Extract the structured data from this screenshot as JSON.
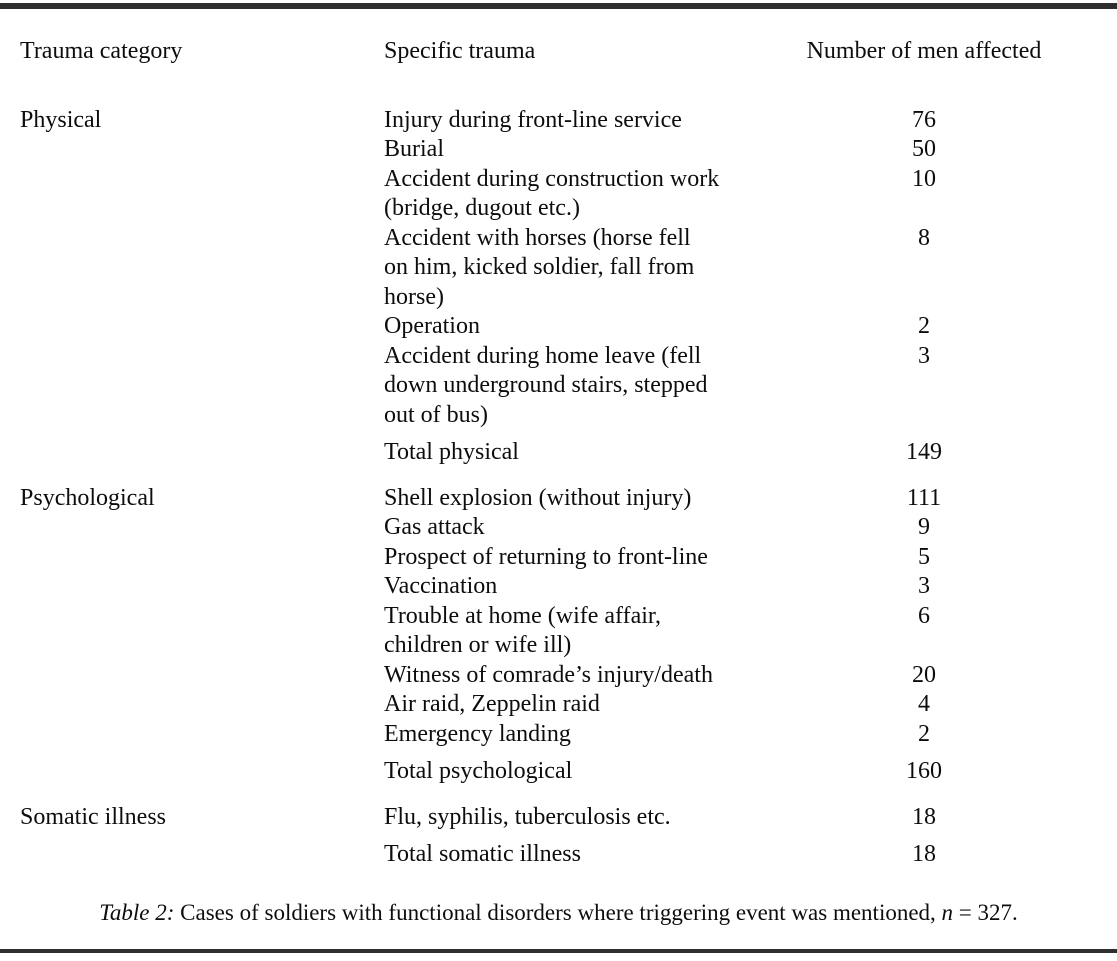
{
  "table": {
    "columns": {
      "category": "Trauma category",
      "trauma": "Specific trauma",
      "number": "Number of men affected"
    },
    "sections": [
      {
        "category": "Physical",
        "rows": [
          {
            "trauma": "Injury during front-line service",
            "number": "76"
          },
          {
            "trauma": "Burial",
            "number": "50"
          },
          {
            "trauma": "Accident during construction work\n(bridge, dugout etc.)",
            "number": "10"
          },
          {
            "trauma": "Accident with horses (horse fell\non him, kicked soldier, fall from\nhorse)",
            "number": "8"
          },
          {
            "trauma": "Operation",
            "number": "2"
          },
          {
            "trauma": "Accident during home leave (fell\ndown underground stairs, stepped\nout of bus)",
            "number": "3"
          }
        ],
        "total": {
          "label": "Total physical",
          "number": "149"
        }
      },
      {
        "category": "Psychological",
        "rows": [
          {
            "trauma": "Shell explosion (without injury)",
            "number": "111"
          },
          {
            "trauma": "Gas attack",
            "number": "9"
          },
          {
            "trauma": "Prospect of returning to front-line",
            "number": "5"
          },
          {
            "trauma": "Vaccination",
            "number": "3"
          },
          {
            "trauma": "Trouble at home (wife affair,\nchildren or wife ill)",
            "number": "6"
          },
          {
            "trauma": "Witness of comrade’s injury/death",
            "number": "20"
          },
          {
            "trauma": "Air raid, Zeppelin raid",
            "number": "4"
          },
          {
            "trauma": "Emergency landing",
            "number": "2"
          }
        ],
        "total": {
          "label": "Total psychological",
          "number": "160"
        }
      },
      {
        "category": "Somatic illness",
        "rows": [
          {
            "trauma": "Flu, syphilis, tuberculosis etc.",
            "number": "18"
          }
        ],
        "total": {
          "label": "Total somatic illness",
          "number": "18"
        }
      }
    ]
  },
  "caption": {
    "label": "Table 2:",
    "text": "Cases of soldiers with functional disorders where triggering event was mentioned,",
    "math_var": "n",
    "math_rest": "= 327."
  }
}
